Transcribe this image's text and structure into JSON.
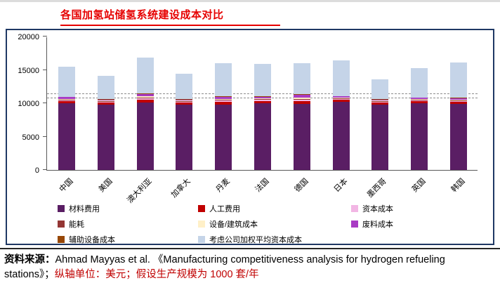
{
  "page": {
    "title": "各国加氢站储氢系统建设成本对比"
  },
  "chart_data": {
    "type": "bar",
    "stacked": true,
    "title": "各国加氢站储氢系统建设成本对比",
    "ylabel_unit": "美元",
    "categories": [
      "中国",
      "美国",
      "澳大利亚",
      "加拿大",
      "丹麦",
      "法国",
      "德国",
      "日本",
      "墨西哥",
      "英国",
      "韩国"
    ],
    "ylim": [
      0,
      20000
    ],
    "yticks": [
      0,
      5000,
      10000,
      15000,
      20000
    ],
    "reference_lines": [
      10700,
      11400
    ],
    "legend_position": "bottom",
    "grid": false,
    "series": [
      {
        "name": "材料费用",
        "color": "#5A1E64",
        "values": [
          10000,
          9800,
          10100,
          9800,
          9800,
          10000,
          9900,
          10200,
          9800,
          10000,
          9900
        ]
      },
      {
        "name": "人工费用",
        "color": "#C00000",
        "values": [
          350,
          300,
          400,
          300,
          400,
          350,
          400,
          300,
          300,
          300,
          300
        ]
      },
      {
        "name": "资本成本",
        "color": "#F2B6E4",
        "values": [
          100,
          100,
          250,
          100,
          200,
          150,
          250,
          100,
          100,
          100,
          100
        ]
      },
      {
        "name": "能耗",
        "color": "#943634",
        "values": [
          100,
          80,
          100,
          80,
          100,
          100,
          100,
          100,
          80,
          80,
          100
        ]
      },
      {
        "name": "设备/建筑成本",
        "color": "#FFF0C8",
        "values": [
          120,
          100,
          200,
          100,
          150,
          150,
          200,
          120,
          100,
          120,
          120
        ]
      },
      {
        "name": "废料成本",
        "color": "#A93BC4",
        "values": [
          250,
          200,
          350,
          200,
          350,
          250,
          450,
          200,
          200,
          220,
          250
        ]
      },
      {
        "name": "辅助设备成本",
        "color": "#974706",
        "values": [
          80,
          80,
          100,
          80,
          80,
          80,
          80,
          80,
          80,
          80,
          80
        ]
      },
      {
        "name": "考虑公司加权平均资本成本",
        "color": "#C5D4E8",
        "values": [
          4500,
          3440,
          5300,
          3740,
          4920,
          4820,
          4620,
          5300,
          2940,
          4400,
          5250
        ]
      }
    ],
    "totals": [
      15500,
      14100,
      16800,
      14400,
      16000,
      15900,
      16000,
      16400,
      13600,
      15300,
      16100
    ],
    "legend_columns": [
      [
        0,
        3,
        6
      ],
      [
        1,
        4,
        7
      ],
      [
        2,
        5
      ]
    ]
  },
  "footer": {
    "source_label": "资料来源：",
    "source_text": "Ahmad Mayyas et al. 《Manufacturing competitiveness analysis for hydrogen refueling stations》；",
    "note_text": "纵轴单位：美元；假设生产规模为 1000 套/年"
  },
  "colors": {
    "title_red": "#E60000",
    "chart_border": "#1F3864",
    "axis": "#595959",
    "reference_line": "#8C8C8C",
    "note_red": "#C00000"
  }
}
